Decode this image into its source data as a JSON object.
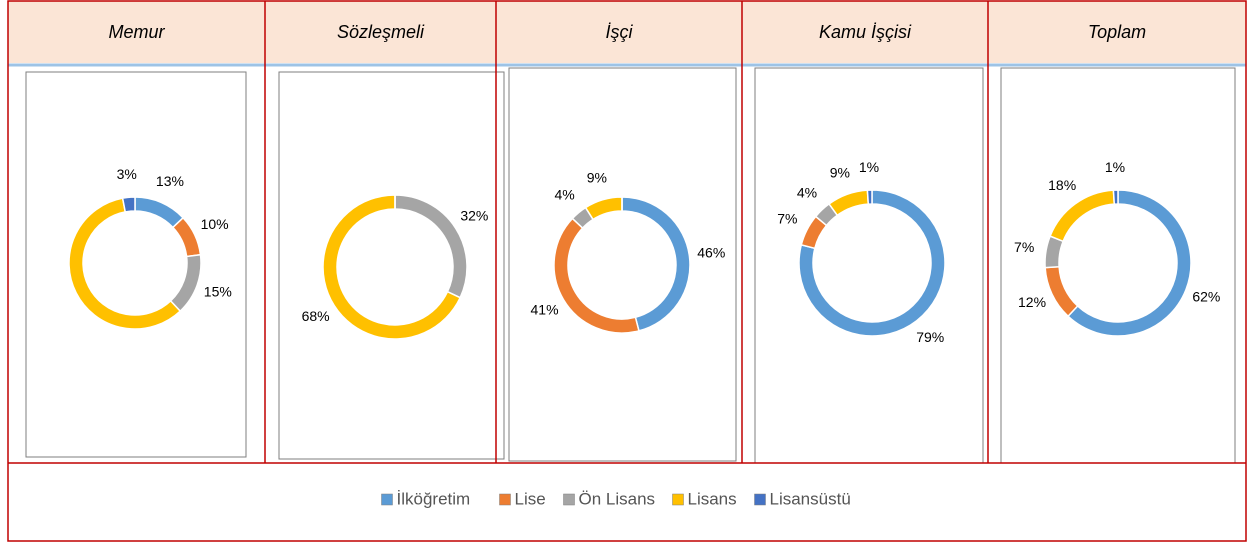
{
  "chart_data": [
    {
      "type": "donut",
      "title": "Memur",
      "categories": [
        "İlköğretim",
        "Lise",
        "Ön Lisans",
        "Lisans",
        "Lisansüstü"
      ],
      "colors": [
        "#5b9bd5",
        "#ed7d31",
        "#a5a5a5",
        "#ffc000",
        "#4472c4"
      ],
      "values": [
        13,
        10,
        15,
        59,
        3
      ],
      "value_labels": [
        "13%",
        "10%",
        "15%",
        null,
        "3%"
      ]
    },
    {
      "type": "donut",
      "title": "Sözleşmeli",
      "categories": [
        "İlköğretim",
        "Lise",
        "Ön Lisans",
        "Lisans",
        "Lisansüstü"
      ],
      "colors": [
        "#5b9bd5",
        "#ed7d31",
        "#a5a5a5",
        "#ffc000",
        "#4472c4"
      ],
      "values": [
        0,
        0,
        32,
        68,
        0
      ],
      "value_labels": [
        null,
        null,
        "32%",
        "68%",
        null
      ]
    },
    {
      "type": "donut",
      "title": "İşçi",
      "categories": [
        "İlköğretim",
        "Lise",
        "Ön Lisans",
        "Lisans",
        "Lisansüstü"
      ],
      "colors": [
        "#5b9bd5",
        "#ed7d31",
        "#a5a5a5",
        "#ffc000",
        "#4472c4"
      ],
      "values": [
        46,
        41,
        4,
        9,
        0
      ],
      "value_labels": [
        "46%",
        "41%",
        "4%",
        "9%",
        null
      ]
    },
    {
      "type": "donut",
      "title": "Kamu İşçisi",
      "categories": [
        "İlköğretim",
        "Lise",
        "Ön Lisans",
        "Lisans",
        "Lisansüstü"
      ],
      "colors": [
        "#5b9bd5",
        "#ed7d31",
        "#a5a5a5",
        "#ffc000",
        "#4472c4"
      ],
      "values": [
        79,
        7,
        4,
        9,
        1
      ],
      "value_labels": [
        "79%",
        "7%",
        "4%",
        "9%",
        "1%"
      ]
    },
    {
      "type": "donut",
      "title": "Toplam",
      "categories": [
        "İlköğretim",
        "Lise",
        "Ön Lisans",
        "Lisans",
        "Lisansüstü"
      ],
      "colors": [
        "#5b9bd5",
        "#ed7d31",
        "#a5a5a5",
        "#ffc000",
        "#4472c4"
      ],
      "values": [
        62,
        12,
        7,
        18,
        1
      ],
      "value_labels": [
        "62%",
        "12%",
        "7%",
        "18%",
        "1%"
      ]
    }
  ]
}
